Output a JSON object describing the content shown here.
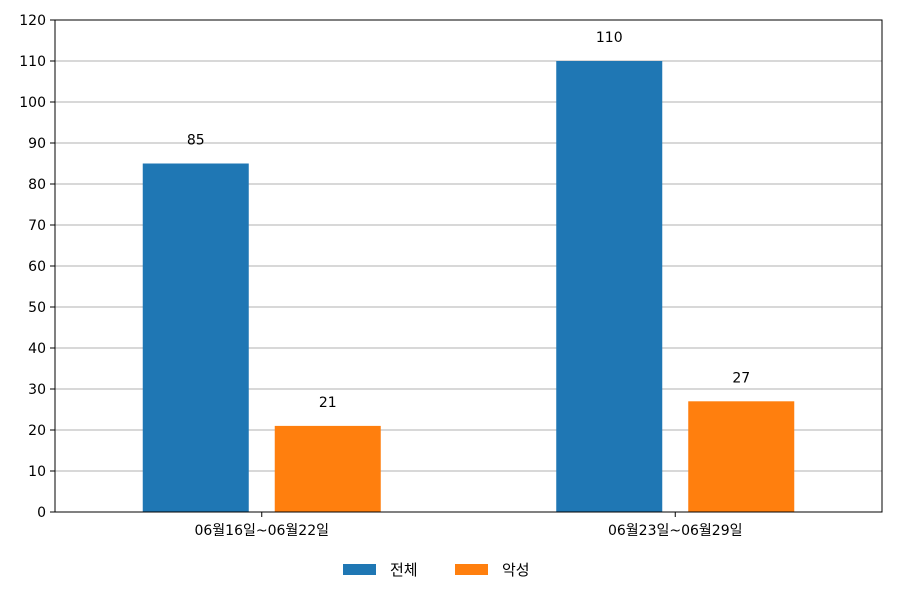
{
  "chart_data": {
    "type": "bar",
    "categories": [
      "06월16일~06월22일",
      "06월23일~06월29일"
    ],
    "series": [
      {
        "name": "전체",
        "values": [
          85,
          110
        ],
        "color": "#1f77b4"
      },
      {
        "name": "악성",
        "values": [
          21,
          27
        ],
        "color": "#ff7f0e"
      }
    ],
    "ylim": [
      0,
      120
    ],
    "yticks": [
      0,
      10,
      20,
      30,
      40,
      50,
      60,
      70,
      80,
      90,
      100,
      110,
      120
    ],
    "grid": "horizontal",
    "legend_position": "bottom-center",
    "show_data_labels": true
  }
}
